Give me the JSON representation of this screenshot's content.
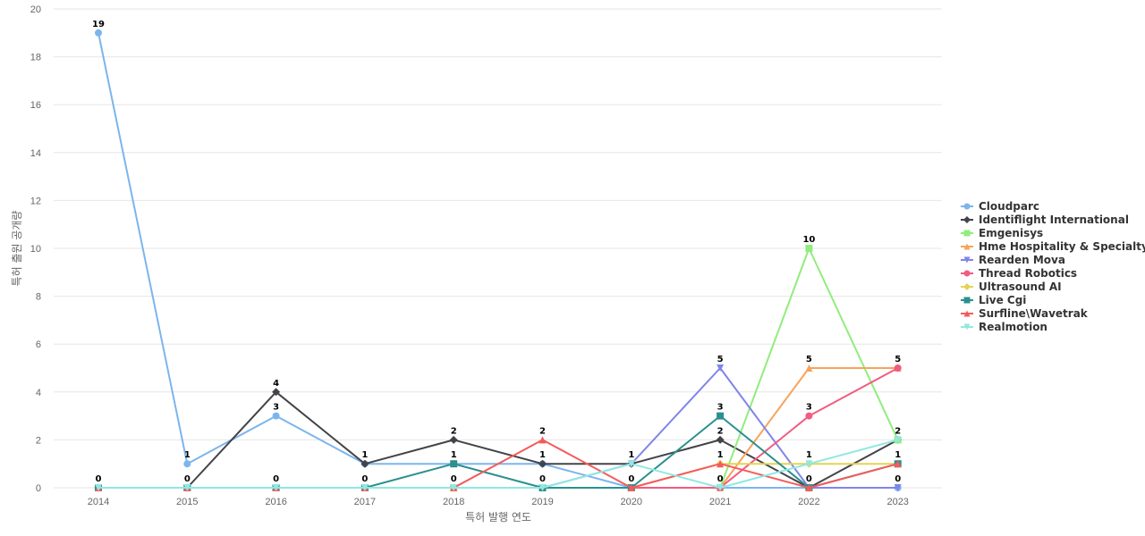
{
  "chart_data": {
    "type": "line",
    "title": "",
    "xlabel": "특허 발행 연도",
    "ylabel": "특허 출원 공개량",
    "categories": [
      "2014",
      "2015",
      "2016",
      "2017",
      "2018",
      "2019",
      "2020",
      "2021",
      "2022",
      "2023"
    ],
    "y_ticks": [
      "0",
      "2",
      "4",
      "6",
      "8",
      "10",
      "12",
      "14",
      "16",
      "18",
      "20"
    ],
    "ylim": [
      0,
      20
    ],
    "grid": true,
    "legend_position": "right",
    "series": [
      {
        "name": "Cloudparc",
        "color": "#7cb5ec",
        "marker": "circle",
        "values": [
          19,
          1,
          3,
          1,
          1,
          1,
          0,
          0,
          0,
          0
        ]
      },
      {
        "name": "Identiflight International",
        "color": "#434348",
        "marker": "diamond",
        "values": [
          0,
          0,
          4,
          1,
          2,
          1,
          1,
          2,
          0,
          2
        ]
      },
      {
        "name": "Emgenisys",
        "color": "#90ed7d",
        "marker": "square",
        "values": [
          0,
          0,
          0,
          0,
          0,
          0,
          0,
          0,
          10,
          2
        ]
      },
      {
        "name": "Hme Hospitality & Specialty...",
        "color": "#f7a35c",
        "marker": "triangle",
        "values": [
          0,
          0,
          0,
          0,
          0,
          0,
          0,
          0,
          5,
          5
        ]
      },
      {
        "name": "Rearden Mova",
        "color": "#8085e9",
        "marker": "triangle-down",
        "values": [
          0,
          0,
          0,
          0,
          0,
          0,
          1,
          5,
          0,
          0
        ]
      },
      {
        "name": "Thread Robotics",
        "color": "#f15c80",
        "marker": "circle",
        "values": [
          0,
          0,
          0,
          0,
          0,
          0,
          0,
          0,
          3,
          5
        ]
      },
      {
        "name": "Ultrasound AI",
        "color": "#e4d354",
        "marker": "diamond",
        "values": [
          0,
          0,
          0,
          0,
          0,
          0,
          0,
          1,
          1,
          1
        ]
      },
      {
        "name": "Live Cgi",
        "color": "#2b908f",
        "marker": "square",
        "values": [
          0,
          0,
          0,
          0,
          1,
          0,
          0,
          3,
          0,
          1
        ]
      },
      {
        "name": "Surfline\\Wavetrak",
        "color": "#f45b5b",
        "marker": "triangle",
        "values": [
          0,
          0,
          0,
          0,
          0,
          2,
          0,
          1,
          0,
          1
        ]
      },
      {
        "name": "Realmotion",
        "color": "#91e8e1",
        "marker": "triangle-down",
        "values": [
          0,
          0,
          0,
          0,
          0,
          0,
          1,
          0,
          1,
          2
        ]
      }
    ],
    "data_labels": [
      {
        "x": "2014",
        "series": "Cloudparc",
        "text": "19"
      },
      {
        "x": "2014",
        "series": "Realmotion",
        "text": "0"
      },
      {
        "x": "2015",
        "series": "Cloudparc",
        "text": "1"
      },
      {
        "x": "2015",
        "series": "Realmotion",
        "text": "0"
      },
      {
        "x": "2016",
        "series": "Identiflight International",
        "text": "4"
      },
      {
        "x": "2016",
        "series": "Cloudparc",
        "text": "3"
      },
      {
        "x": "2016",
        "series": "Realmotion",
        "text": "0"
      },
      {
        "x": "2017",
        "series": "Identiflight International",
        "text": "1"
      },
      {
        "x": "2017",
        "series": "Realmotion",
        "text": "0"
      },
      {
        "x": "2018",
        "series": "Identiflight International",
        "text": "2"
      },
      {
        "x": "2018",
        "series": "Live Cgi",
        "text": "1"
      },
      {
        "x": "2018",
        "series": "Realmotion",
        "text": "0"
      },
      {
        "x": "2019",
        "series": "Surfline\\Wavetrak",
        "text": "2"
      },
      {
        "x": "2019",
        "series": "Identiflight International",
        "text": "1"
      },
      {
        "x": "2019",
        "series": "Realmotion",
        "text": "0"
      },
      {
        "x": "2020",
        "series": "Realmotion",
        "text": "1"
      },
      {
        "x": "2020",
        "series": "Cloudparc",
        "text": "0"
      },
      {
        "x": "2021",
        "series": "Rearden Mova",
        "text": "5"
      },
      {
        "x": "2021",
        "series": "Live Cgi",
        "text": "3"
      },
      {
        "x": "2021",
        "series": "Identiflight International",
        "text": "2"
      },
      {
        "x": "2021",
        "series": "Ultrasound AI",
        "text": "1"
      },
      {
        "x": "2021",
        "series": "Realmotion",
        "text": "0"
      },
      {
        "x": "2022",
        "series": "Emgenisys",
        "text": "10"
      },
      {
        "x": "2022",
        "series": "Hme Hospitality & Specialty...",
        "text": "5"
      },
      {
        "x": "2022",
        "series": "Thread Robotics",
        "text": "3"
      },
      {
        "x": "2022",
        "series": "Realmotion",
        "text": "1"
      },
      {
        "x": "2022",
        "series": "Cloudparc",
        "text": "0"
      },
      {
        "x": "2023",
        "series": "Thread Robotics",
        "text": "5"
      },
      {
        "x": "2023",
        "series": "Realmotion",
        "text": "2"
      },
      {
        "x": "2023",
        "series": "Live Cgi",
        "text": "1"
      },
      {
        "x": "2023",
        "series": "Cloudparc",
        "text": "0"
      }
    ]
  }
}
